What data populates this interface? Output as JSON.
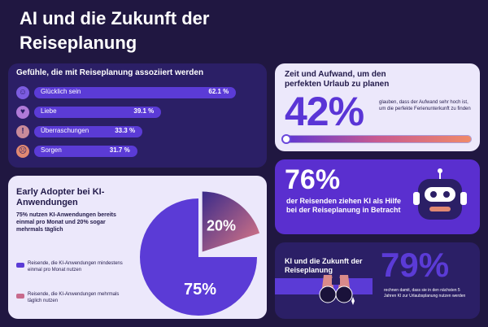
{
  "title": "AI und die Zukunft der Reiseplanung",
  "feelings": {
    "heading": "Gefühle, die mit Reiseplanung assoziiert werden",
    "items": [
      {
        "label": "Glücklich sein",
        "value_text": "62.1 %",
        "value": 62.1,
        "emoji": "☺",
        "color": "#7c5ce0"
      },
      {
        "label": "Liebe",
        "value_text": "39.1 %",
        "value": 39.1,
        "emoji": "♥",
        "color": "#b07ad8"
      },
      {
        "label": "Überraschungen",
        "value_text": "33.3 %",
        "value": 33.3,
        "emoji": "!",
        "color": "#c98a9a"
      },
      {
        "label": "Sorgen",
        "value_text": "31.7 %",
        "value": 31.7,
        "emoji": "☹",
        "color": "#e08872"
      }
    ]
  },
  "early": {
    "heading": "Early Adopter bei KI-Anwendungen",
    "sub": "75% nutzen KI-Anwendungen bereits einmal pro Monat und 20% sogar mehrmals täglich",
    "legend": [
      {
        "text": "Reisende, die KI-Anwendungen mindestens einmal pro Monat nutzen",
        "color": "#5b3bd6"
      },
      {
        "text": "Reisende, die KI-Anwendungen mehrmals täglich nutzen",
        "color": "#c86a8c"
      }
    ],
    "pie_label_large": "75%",
    "pie_label_small": "20%"
  },
  "time": {
    "heading": "Zeit und Aufwand, um den perfekten Urlaub zu planen",
    "big": "42%",
    "desc": "glauben, dass der Aufwand sehr hoch ist, um die perfekte Ferienunterkunft zu finden",
    "progress": 0.42
  },
  "robot": {
    "big": "76%",
    "desc": "der Reisenden ziehen KI als Hilfe bei der Reiseplanung in Betracht"
  },
  "future": {
    "heading": "KI und die Zukunft der Reiseplanung",
    "big": "79%",
    "desc": "rechnen damit, dass sie in den nächsten 5 Jahren KI zur Urlaubsplanung nutzen werden"
  },
  "chart_data": [
    {
      "type": "bar",
      "title": "Gefühle, die mit Reiseplanung assoziiert werden",
      "categories": [
        "Glücklich sein",
        "Liebe",
        "Überraschungen",
        "Sorgen"
      ],
      "values": [
        62.1,
        39.1,
        33.3,
        31.7
      ],
      "ylim": [
        0,
        100
      ]
    },
    {
      "type": "pie",
      "title": "Early Adopter bei KI-Anwendungen",
      "categories": [
        "Reisende, die KI-Anwendungen mindestens einmal pro Monat nutzen",
        "Reisende, die KI-Anwendungen mehrmals täglich nutzen"
      ],
      "values": [
        75,
        20
      ]
    }
  ],
  "colors": {
    "background": "#201741",
    "accent": "#5b3bd6",
    "light_card": "#ece8fb",
    "dark_card": "#2b1f66"
  }
}
